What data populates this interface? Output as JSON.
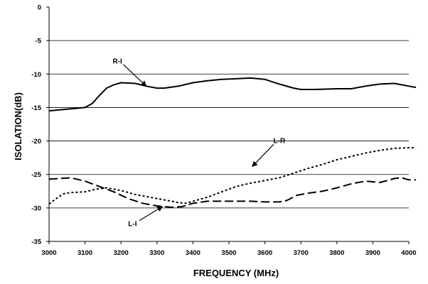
{
  "chart_data": {
    "type": "line",
    "title": "",
    "xlabel": "FREQUENCY (MHz)",
    "ylabel": "ISOLATION(dB)",
    "xlim": [
      3000,
      4000
    ],
    "ylim": [
      -35,
      0
    ],
    "x_ticks": [
      "3000",
      "3100",
      "3200",
      "3300",
      "3400",
      "3500",
      "3600",
      "3700",
      "3800",
      "3900",
      "4000"
    ],
    "y_ticks": [
      "0",
      "-5",
      "-10",
      "-15",
      "-20",
      "-25",
      "-30",
      "-35"
    ],
    "grid": "horizontal",
    "series": [
      {
        "name": "R-I",
        "style": "solid",
        "points": [
          [
            3000,
            -15.5
          ],
          [
            3040,
            -15.3
          ],
          [
            3080,
            -15.1
          ],
          [
            3100,
            -15.0
          ],
          [
            3120,
            -14.4
          ],
          [
            3140,
            -13.2
          ],
          [
            3160,
            -12.1
          ],
          [
            3180,
            -11.6
          ],
          [
            3200,
            -11.3
          ],
          [
            3240,
            -11.4
          ],
          [
            3270,
            -11.8
          ],
          [
            3300,
            -12.1
          ],
          [
            3320,
            -12.1
          ],
          [
            3360,
            -11.8
          ],
          [
            3400,
            -11.3
          ],
          [
            3440,
            -11.0
          ],
          [
            3480,
            -10.8
          ],
          [
            3520,
            -10.7
          ],
          [
            3560,
            -10.6
          ],
          [
            3600,
            -10.8
          ],
          [
            3640,
            -11.5
          ],
          [
            3680,
            -12.1
          ],
          [
            3700,
            -12.3
          ],
          [
            3740,
            -12.3
          ],
          [
            3800,
            -12.2
          ],
          [
            3840,
            -12.2
          ],
          [
            3880,
            -11.8
          ],
          [
            3920,
            -11.5
          ],
          [
            3960,
            -11.4
          ],
          [
            4000,
            -11.8
          ],
          [
            4020,
            -12.0
          ]
        ]
      },
      {
        "name": "L-R",
        "style": "dotted",
        "points": [
          [
            3000,
            -29.4
          ],
          [
            3020,
            -28.6
          ],
          [
            3040,
            -27.9
          ],
          [
            3060,
            -27.7
          ],
          [
            3100,
            -27.6
          ],
          [
            3130,
            -27.2
          ],
          [
            3160,
            -27.0
          ],
          [
            3200,
            -27.4
          ],
          [
            3240,
            -28.0
          ],
          [
            3280,
            -28.4
          ],
          [
            3320,
            -28.8
          ],
          [
            3360,
            -29.2
          ],
          [
            3380,
            -29.3
          ],
          [
            3400,
            -29.0
          ],
          [
            3440,
            -28.4
          ],
          [
            3480,
            -27.6
          ],
          [
            3520,
            -26.8
          ],
          [
            3560,
            -26.3
          ],
          [
            3600,
            -25.9
          ],
          [
            3640,
            -25.5
          ],
          [
            3680,
            -24.8
          ],
          [
            3720,
            -24.1
          ],
          [
            3760,
            -23.5
          ],
          [
            3800,
            -22.8
          ],
          [
            3840,
            -22.3
          ],
          [
            3880,
            -21.8
          ],
          [
            3920,
            -21.4
          ],
          [
            3960,
            -21.1
          ],
          [
            4000,
            -21.0
          ],
          [
            4020,
            -21.0
          ]
        ]
      },
      {
        "name": "L-I",
        "style": "dashed",
        "points": [
          [
            3000,
            -25.7
          ],
          [
            3030,
            -25.6
          ],
          [
            3060,
            -25.5
          ],
          [
            3100,
            -26.0
          ],
          [
            3140,
            -26.8
          ],
          [
            3180,
            -27.6
          ],
          [
            3220,
            -28.6
          ],
          [
            3260,
            -29.3
          ],
          [
            3300,
            -29.7
          ],
          [
            3340,
            -29.9
          ],
          [
            3370,
            -29.8
          ],
          [
            3400,
            -29.3
          ],
          [
            3440,
            -29.0
          ],
          [
            3480,
            -29.0
          ],
          [
            3520,
            -29.0
          ],
          [
            3560,
            -29.0
          ],
          [
            3600,
            -29.1
          ],
          [
            3640,
            -29.1
          ],
          [
            3660,
            -28.9
          ],
          [
            3690,
            -28.1
          ],
          [
            3720,
            -27.8
          ],
          [
            3760,
            -27.5
          ],
          [
            3800,
            -27.0
          ],
          [
            3840,
            -26.4
          ],
          [
            3880,
            -26.0
          ],
          [
            3920,
            -26.2
          ],
          [
            3960,
            -25.6
          ],
          [
            3980,
            -25.5
          ],
          [
            4000,
            -25.8
          ],
          [
            4020,
            -25.8
          ]
        ]
      }
    ],
    "annotations": [
      {
        "text": "R-I",
        "label_at": [
          3190,
          -8.0
        ],
        "arrow_to": [
          3270,
          -11.8
        ]
      },
      {
        "text": "L-R",
        "label_at": [
          3640,
          -19.9
        ],
        "arrow_to": [
          3565,
          -23.8
        ]
      },
      {
        "text": "L-I",
        "label_at": [
          3232,
          -32.3
        ],
        "arrow_to": [
          3315,
          -29.8
        ]
      }
    ]
  }
}
